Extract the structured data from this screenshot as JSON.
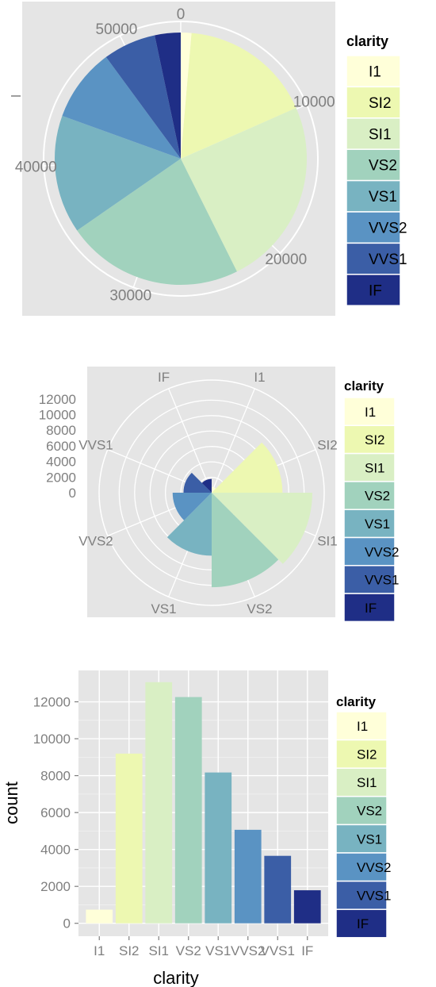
{
  "palette": [
    "#ffffd9",
    "#edf8b1",
    "#d9efc4",
    "#a1d2bd",
    "#78b3c1",
    "#5a93c3",
    "#3b5ea6",
    "#1f2e86"
  ],
  "legend": {
    "title": "clarity",
    "items": [
      "I1",
      "SI2",
      "SI1",
      "VS2",
      "VS1",
      "VVS2",
      "VVS1",
      "IF"
    ]
  },
  "chart_data": [
    {
      "type": "pie",
      "title": "",
      "legend_title": "clarity",
      "categories": [
        "I1",
        "SI2",
        "SI1",
        "VS2",
        "VS1",
        "VVS2",
        "VVS1",
        "IF"
      ],
      "values": [
        741,
        9194,
        13065,
        12258,
        8171,
        5066,
        3655,
        1790
      ],
      "radial_ticks": [
        "0",
        "10000",
        "20000",
        "30000",
        "40000",
        "50000"
      ],
      "radial_tick_values": [
        0,
        10000,
        20000,
        30000,
        40000,
        50000
      ],
      "total": 53940,
      "legend_position": "right"
    },
    {
      "type": "bar",
      "polar": true,
      "title": "",
      "legend_title": "clarity",
      "categories": [
        "I1",
        "SI2",
        "SI1",
        "VS2",
        "VS1",
        "VVS2",
        "VVS1",
        "IF"
      ],
      "values": [
        741,
        9194,
        13065,
        12258,
        8171,
        5066,
        3655,
        1790
      ],
      "y_ticks": [
        "0",
        "2000",
        "4000",
        "6000",
        "8000",
        "10000",
        "12000"
      ],
      "y_tick_values": [
        0,
        2000,
        4000,
        6000,
        8000,
        10000,
        12000
      ],
      "ylim": [
        0,
        13065
      ],
      "legend_position": "right"
    },
    {
      "type": "bar",
      "title": "",
      "xlabel": "clarity",
      "ylabel": "count",
      "legend_title": "clarity",
      "categories": [
        "I1",
        "SI2",
        "SI1",
        "VS2",
        "VS1",
        "VVS2",
        "VVS1",
        "IF"
      ],
      "values": [
        741,
        9194,
        13065,
        12258,
        8171,
        5066,
        3655,
        1790
      ],
      "y_ticks": [
        "0",
        "2000",
        "4000",
        "6000",
        "8000",
        "10000",
        "12000"
      ],
      "y_tick_values": [
        0,
        2000,
        4000,
        6000,
        8000,
        10000,
        12000
      ],
      "ylim": [
        -700,
        13700
      ],
      "grid": true,
      "legend_position": "right"
    }
  ]
}
